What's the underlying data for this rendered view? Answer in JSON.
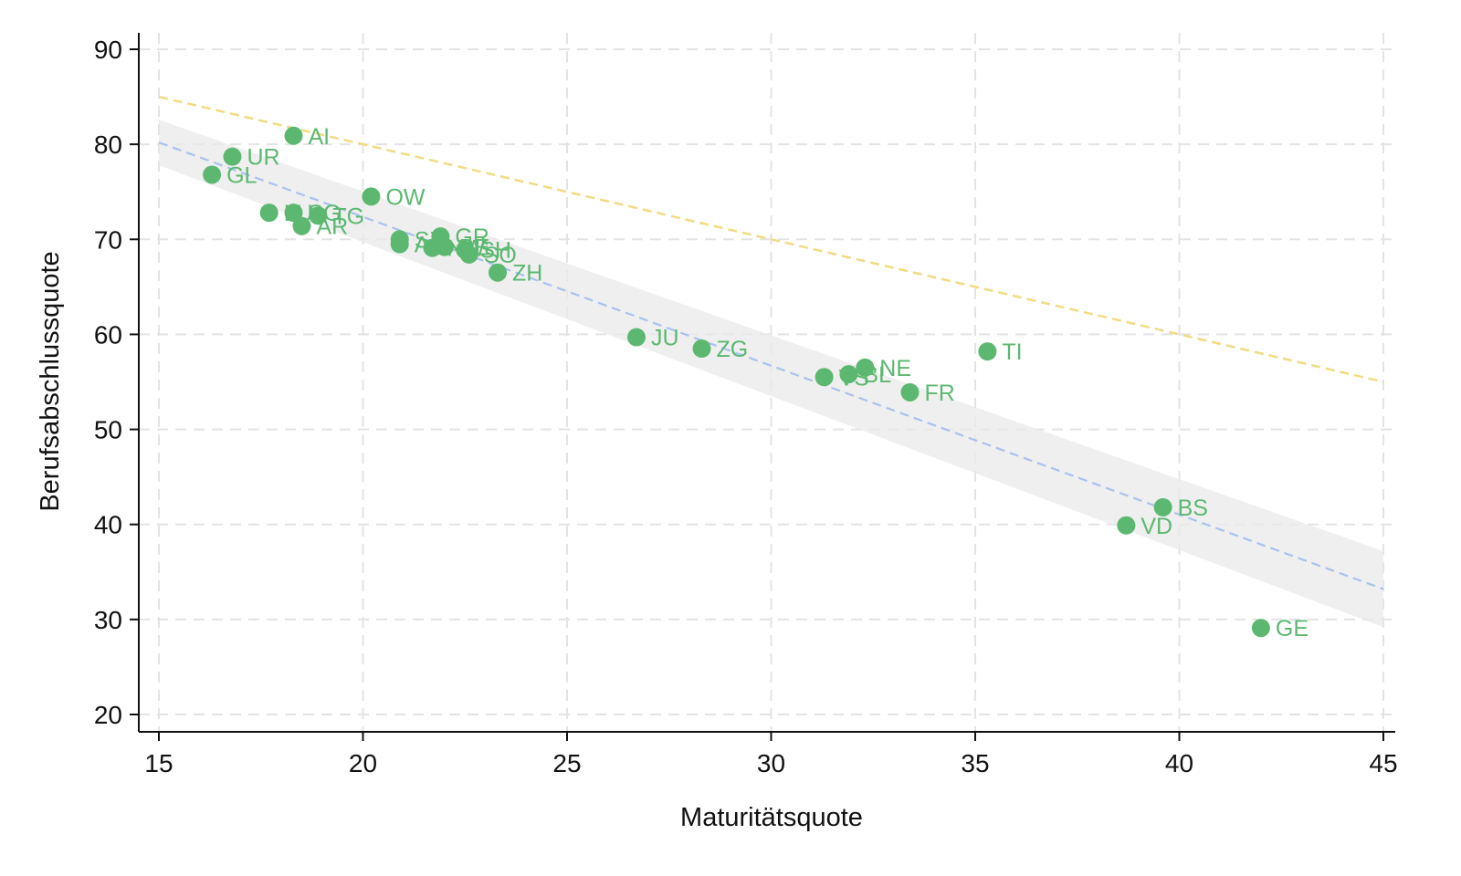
{
  "chart_data": {
    "type": "scatter",
    "title": "",
    "xlabel": "Maturitätsquote",
    "ylabel": "Berufsabschlussquote",
    "xlim": [
      15,
      45
    ],
    "ylim": [
      20,
      90
    ],
    "xticks": [
      15,
      20,
      25,
      30,
      35,
      40,
      45
    ],
    "yticks": [
      20,
      30,
      40,
      50,
      60,
      70,
      80,
      90
    ],
    "grid": true,
    "colors": {
      "points": "#5cb870",
      "labels": "#5cb870",
      "fit_line": "#a9c1ef",
      "confidence_band": "#e9e9e9",
      "reference_line": "#f1dc82",
      "grid": "#e3e3e3",
      "axis": "#111111"
    },
    "points": [
      {
        "label": "AI",
        "x": 18.3,
        "y": 80.9
      },
      {
        "label": "UR",
        "x": 16.8,
        "y": 78.7
      },
      {
        "label": "GL",
        "x": 16.3,
        "y": 76.8
      },
      {
        "label": "OW",
        "x": 20.2,
        "y": 74.5
      },
      {
        "label": "LU",
        "x": 17.7,
        "y": 72.8
      },
      {
        "label": "SG",
        "x": 18.3,
        "y": 72.8
      },
      {
        "label": "TG",
        "x": 18.9,
        "y": 72.5
      },
      {
        "label": "AR",
        "x": 18.5,
        "y": 71.4
      },
      {
        "label": "SZ",
        "x": 20.9,
        "y": 70.0
      },
      {
        "label": "AG",
        "x": 20.9,
        "y": 69.5
      },
      {
        "label": "GR",
        "x": 21.9,
        "y": 70.3
      },
      {
        "label": "NW",
        "x": 21.7,
        "y": 69.1
      },
      {
        "label": "BE",
        "x": 22.0,
        "y": 69.2
      },
      {
        "label": "SH",
        "x": 22.5,
        "y": 68.9
      },
      {
        "label": "SO",
        "x": 22.6,
        "y": 68.4
      },
      {
        "label": "ZH",
        "x": 23.3,
        "y": 66.5
      },
      {
        "label": "JU",
        "x": 26.7,
        "y": 59.7
      },
      {
        "label": "ZG",
        "x": 28.3,
        "y": 58.5
      },
      {
        "label": "VS",
        "x": 31.3,
        "y": 55.5
      },
      {
        "label": "BL",
        "x": 31.9,
        "y": 55.8
      },
      {
        "label": "NE",
        "x": 32.3,
        "y": 56.5
      },
      {
        "label": "FR",
        "x": 33.4,
        "y": 53.9
      },
      {
        "label": "TI",
        "x": 35.3,
        "y": 58.2
      },
      {
        "label": "BS",
        "x": 39.6,
        "y": 41.8
      },
      {
        "label": "VD",
        "x": 38.7,
        "y": 39.9
      },
      {
        "label": "GE",
        "x": 42.0,
        "y": 29.1
      }
    ],
    "fit_line": {
      "x": [
        15,
        45
      ],
      "y": [
        80.2,
        33.2
      ]
    },
    "confidence_band": {
      "x": [
        15,
        45
      ],
      "upper": [
        82.6,
        37.2
      ],
      "lower": [
        77.8,
        29.2
      ]
    },
    "reference_line": {
      "x": [
        15,
        45
      ],
      "y": [
        85.0,
        55.0
      ]
    }
  }
}
